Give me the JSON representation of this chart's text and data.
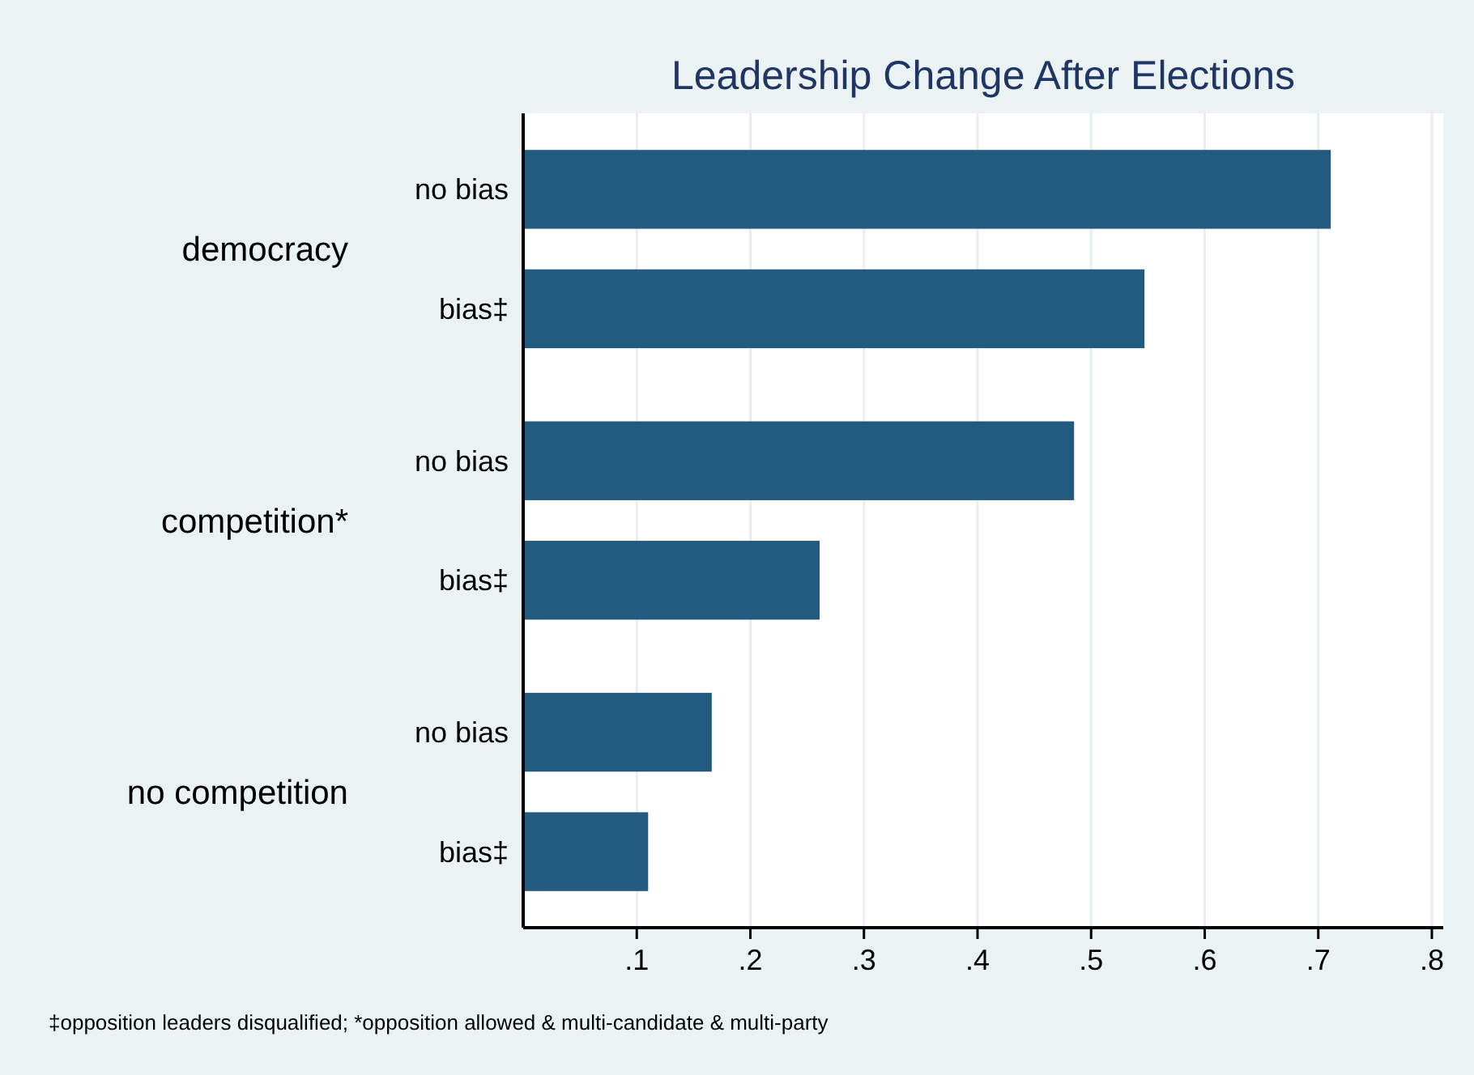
{
  "chart_data": {
    "type": "bar",
    "orientation": "horizontal",
    "title": "Leadership Change After Elections",
    "categories": [
      "democracy",
      "competition*",
      "no competition"
    ],
    "series": [
      {
        "name": "no bias",
        "color": "#235a80",
        "values": [
          0.711,
          0.485,
          0.166
        ]
      },
      {
        "name": "bias‡",
        "color": "#235a80",
        "values": [
          0.547,
          0.261,
          0.11
        ]
      }
    ],
    "xlim": [
      0,
      0.81
    ],
    "xticks": [
      {
        "value": 0.1,
        "label": ".1"
      },
      {
        "value": 0.2,
        "label": ".2"
      },
      {
        "value": 0.3,
        "label": ".3"
      },
      {
        "value": 0.4,
        "label": ".4"
      },
      {
        "value": 0.5,
        "label": ".5"
      },
      {
        "value": 0.6,
        "label": ".6"
      },
      {
        "value": 0.7,
        "label": ".7"
      },
      {
        "value": 0.8,
        "label": ".8"
      }
    ],
    "grid": "x",
    "annotations": [
      "‡opposition leaders disqualified; *opposition allowed & multi-candidate & multi-party"
    ]
  }
}
